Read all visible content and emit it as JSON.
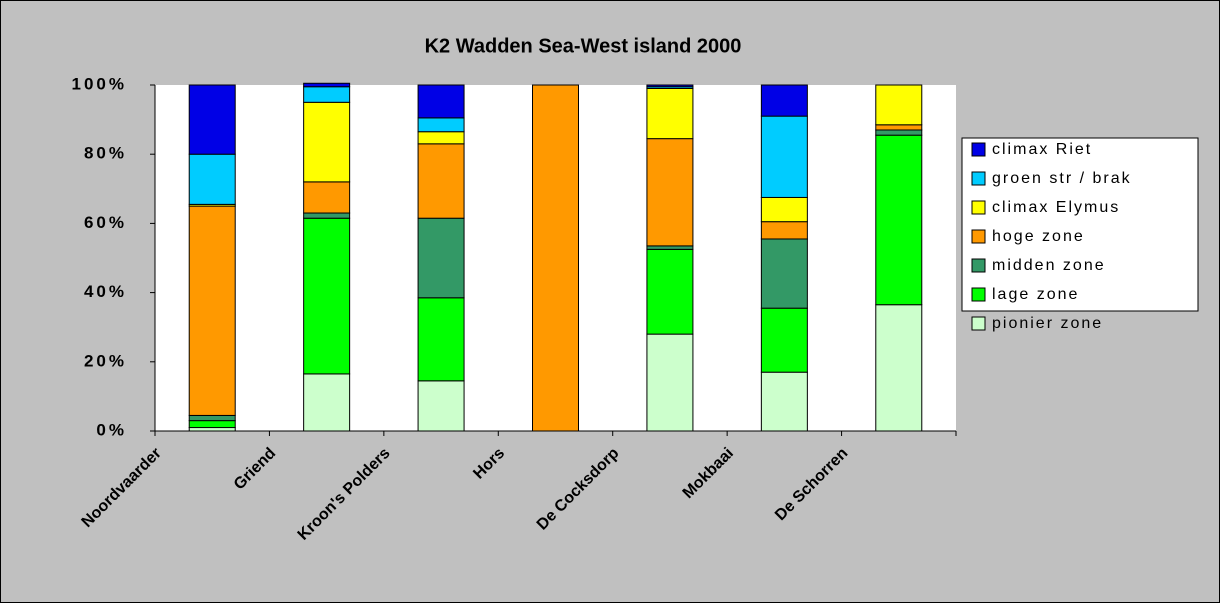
{
  "chart_data": {
    "type": "stacked_bar_percent",
    "title": "K2 Wadden Sea-West island 2000",
    "categories": [
      "Noordvaarder",
      "Griend",
      "Kroon's Polders",
      "Hors",
      "De Cocksdorp",
      "Mokbaai",
      "De Schorren"
    ],
    "series": [
      {
        "name": "pionier zone",
        "color": "#ccffcc",
        "values": [
          1,
          16.5,
          14.5,
          0,
          28,
          17,
          36.5
        ]
      },
      {
        "name": "lage zone",
        "color": "#00ff00",
        "values": [
          2,
          45,
          24,
          0,
          24.5,
          18.5,
          49
        ]
      },
      {
        "name": "midden zone",
        "color": "#339966",
        "values": [
          1.5,
          1.5,
          23,
          0,
          1,
          20,
          1.5
        ]
      },
      {
        "name": "hoge zone",
        "color": "#ff9900",
        "values": [
          60.5,
          9,
          21.5,
          100,
          31,
          5,
          1.5
        ]
      },
      {
        "name": "climax Elymus",
        "color": "#ffff00",
        "values": [
          0.5,
          23,
          3.5,
          0,
          14.5,
          7,
          11.5
        ]
      },
      {
        "name": "groen str / brak",
        "color": "#00ccff",
        "values": [
          14.5,
          4.5,
          4,
          0,
          0.5,
          23.5,
          0
        ]
      },
      {
        "name": "climax Riet",
        "color": "#0000e6",
        "values": [
          20,
          1,
          9.5,
          0,
          0.5,
          9,
          0
        ]
      }
    ],
    "ylim": [
      0,
      100
    ],
    "yticks": [
      {
        "value": 0,
        "label": "0%"
      },
      {
        "value": 20,
        "label": "20%"
      },
      {
        "value": 40,
        "label": "40%"
      },
      {
        "value": 60,
        "label": "60%"
      },
      {
        "value": 80,
        "label": "80%"
      },
      {
        "value": 100,
        "label": "100%"
      }
    ],
    "legend": "right"
  }
}
